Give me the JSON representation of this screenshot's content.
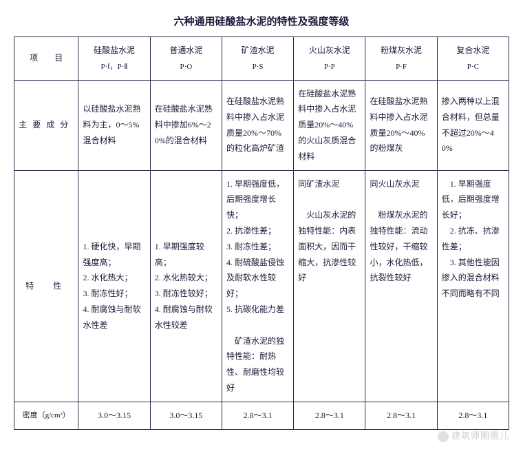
{
  "title": "六种通用硅酸盐水泥的特性及强度等级",
  "columns": [
    {
      "label": "项　　目",
      "sub": ""
    },
    {
      "label": "硅酸盐水泥",
      "sub": "P·Ⅰ，P·Ⅱ"
    },
    {
      "label": "普通水泥",
      "sub": "P·O"
    },
    {
      "label": "矿渣水泥",
      "sub": "P·S"
    },
    {
      "label": "火山灰水泥",
      "sub": "P·P"
    },
    {
      "label": "粉煤灰水泥",
      "sub": "P·F"
    },
    {
      "label": "复合水泥",
      "sub": "P·C"
    }
  ],
  "rows": {
    "chengfen": {
      "label": "主要成分",
      "c1": "以硅酸盐水泥熟料为主，0～5%混合材料",
      "c2": "在硅酸盐水泥熟料中掺加6%～20%的混合材料",
      "c3": "在硅酸盐水泥熟料中掺入占水泥质量20%～70%的粒化高炉矿渣",
      "c4": "在硅酸盐水泥熟料中掺入占水泥质量20%～40%的火山灰质混合材料",
      "c5": "在硅酸盐水泥熟料中掺入占水泥质量20%～40%的粉煤灰",
      "c6": "掺入两种以上混合材料，但总量不超过20%～40%"
    },
    "texing": {
      "label": "特　性",
      "c1": "1. 硬化快，早期强度高；\n2. 水化热大；\n3. 耐冻性好；\n4. 耐腐蚀与耐软水性差",
      "c2": "1. 早期强度较高；\n2. 水化热较大；\n3. 耐冻性较好；\n4. 耐腐蚀与耐软水性较差",
      "c3": "1. 早期强度低，后期强度增长快；\n2. 抗渗性差；\n3. 耐冻性差；\n4. 耐硫酸盐侵蚀及耐软水性较好；\n5. 抗碳化能力差\n\n　矿渣水泥的独特性能：耐热性、耐磨性均较好",
      "c4": "同矿渣水泥\n\n　火山灰水泥的独特性能：内表面积大，因而干缩大，抗渗性较好",
      "c5": "同火山灰水泥\n\n　粉煤灰水泥的独特性能：流动性较好，干缩较小，水化热低，抗裂性较好",
      "c6": "　1. 早期强度低，后期强度增长好；\n　2. 抗冻、抗渗性差；\n　3. 其他性能因掺入的混合材料不同而略有不同"
    },
    "midu": {
      "label": "密度（g/cm³）",
      "c1": "3.0～3.15",
      "c2": "3.0～3.15",
      "c3": "2.8～3.1",
      "c4": "2.8～3.1",
      "c5": "2.8～3.1",
      "c6": "2.8～3.1"
    }
  },
  "watermark": "建筑师圈圈儿",
  "style": {
    "text_color": "#1a1a3a",
    "border_color": "#2a2a4a",
    "background_color": "#ffffff",
    "base_fontsize": 12,
    "title_fontsize": 15,
    "watermark_color": "#cfcfcf"
  }
}
